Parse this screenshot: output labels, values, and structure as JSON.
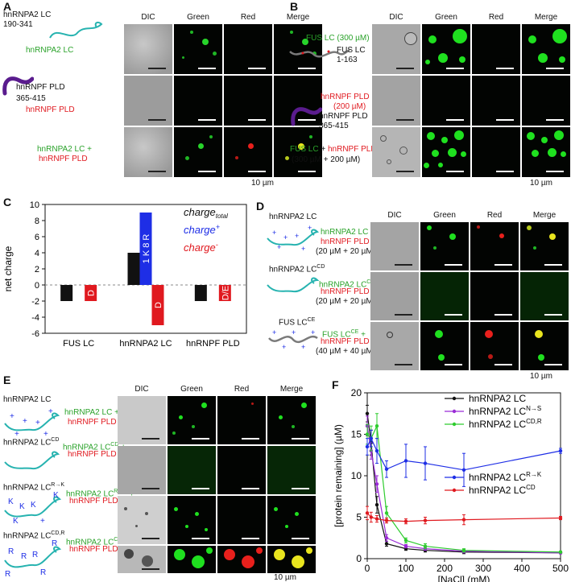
{
  "panels": {
    "A": "A",
    "B": "B",
    "C": "C",
    "D": "D",
    "E": "E",
    "F": "F"
  },
  "columns": [
    "DIC",
    "Green",
    "Red",
    "Merge"
  ],
  "scale_label": "10 µm",
  "panelA": {
    "row1": {
      "name": "hnRNPA2 LC",
      "range": "190-341",
      "tag": "hnRNPA2 LC"
    },
    "row2": {
      "name": "hnRNPF PLD",
      "range": "365-415",
      "tag": "hnRNPF PLD"
    },
    "row3": {
      "line1": "hnRNPA2 LC +",
      "line2": "hnRNPF PLD"
    }
  },
  "panelB": {
    "row1": {
      "tag": "FUS LC (300 µM)",
      "name": "FUS LC",
      "range": "1-163"
    },
    "row2": {
      "tag1": "hnRNPF PLD",
      "tag2": "(200 µM)",
      "name": "hnRNPF PLD",
      "range": "365-415"
    },
    "row3": {
      "part1": "FUS LC",
      "plus": " + ",
      "part2": "hnRNPF PLD",
      "conc": "(300 µM + 200 µM)"
    }
  },
  "panelD": {
    "row1": {
      "title": "hnRNPA2 LC",
      "l1": "hnRNPA2 LC +",
      "l2": "hnRNPF PLD",
      "l3": "(20 µM + 20 µM)"
    },
    "row2": {
      "title": "hnRNPA2 LC",
      "sup": "CD",
      "l1": "hnRNPA2 LC",
      "l1sup": "CD",
      "l1end": " +",
      "l2": "hnRNPF PLD",
      "l3": "(20 µM + 20 µM)"
    },
    "row3": {
      "title": "FUS LC",
      "sup": "CE",
      "l1": "FUS LC",
      "l1sup": "CE",
      "l1end": " +",
      "l2": "hnRNPF PLD",
      "l3": "(40 µM + 40 µM)"
    }
  },
  "panelE": {
    "row1": {
      "title": "hnRNPA2 LC",
      "l1": "hnRNPA2 LC +",
      "l2": "hnRNPF PLD"
    },
    "row2": {
      "title": "hnRNPA2 LC",
      "sup": "CD",
      "l1": "hnRNPA2 LC",
      "l1sup": "CD",
      "l1end": " +",
      "l2": "hnRNPF PLD"
    },
    "row3": {
      "title": "hnRNPA2 LC",
      "sup": "R→K",
      "l1": "hnRNPA2 LC",
      "l1sup": "R→K",
      "l1end": " +",
      "l2": "hnRNPF PLD"
    },
    "row4": {
      "title": "hnRNPA2 LC",
      "sup": "CD,R",
      "l1": "hnRNPA2 LC",
      "l1sup": "CD,R",
      "l1end": " +",
      "l2": "hnRNPF PLD"
    }
  },
  "colors": {
    "green": "#2aa22a",
    "red": "#e0191f",
    "blue": "#1e2ee6",
    "purple": "#9a2bd6",
    "teal": "#27b3b0",
    "dark_purple": "#5a1c8e"
  },
  "chart_data": [
    {
      "type": "bar",
      "ylabel": "net charge",
      "ylim": [
        -6,
        10
      ],
      "yticks": [
        -6,
        -4,
        -2,
        0,
        2,
        4,
        6,
        8,
        10
      ],
      "categories": [
        "FUS LC",
        "hnRNPA2 LC",
        "hnRNPF PLD"
      ],
      "legend": [
        {
          "text": "charge",
          "sub": "total",
          "color": "#111111"
        },
        {
          "text": "charge",
          "sup": "+",
          "color": "#1e2ee6"
        },
        {
          "text": "charge",
          "sup": "-",
          "color": "#e0191f"
        }
      ],
      "series": [
        {
          "name": "charge total",
          "color": "#111111",
          "values": [
            -2,
            4,
            -2
          ]
        },
        {
          "name": "charge +",
          "color": "#1e2ee6",
          "values": [
            0,
            9,
            0
          ],
          "labels": [
            "",
            "1 K  8 R",
            ""
          ]
        },
        {
          "name": "charge -",
          "color": "#e0191f",
          "values": [
            -2,
            -5,
            -2
          ],
          "labels": [
            "D",
            "D",
            "D/E"
          ]
        }
      ]
    },
    {
      "type": "line",
      "xlabel": "[NaCl] (mM)",
      "ylabel": "[protein remaining] (µM)",
      "xlim": [
        0,
        500
      ],
      "ylim": [
        0,
        20
      ],
      "xticks": [
        0,
        100,
        200,
        300,
        400,
        500
      ],
      "yticks": [
        0,
        5,
        10,
        15,
        20
      ],
      "x": [
        0,
        10,
        25,
        50,
        100,
        150,
        250,
        500
      ],
      "series": [
        {
          "name": "hnRNPA2 LC",
          "sup": "",
          "color": "#111111",
          "values": [
            17.5,
            14.0,
            6.5,
            1.8,
            1.2,
            1.0,
            0.8,
            0.7
          ],
          "err": [
            1.0,
            1.5,
            1.0,
            0.3,
            0.2,
            0.2,
            0.2,
            0.1
          ]
        },
        {
          "name": "hnRNPA2 LC",
          "sup": "N→S",
          "color": "#9a2bd6",
          "values": [
            16.0,
            13.0,
            9.0,
            2.5,
            1.5,
            1.2,
            0.9,
            0.7
          ],
          "err": [
            1.2,
            1.0,
            1.0,
            0.4,
            0.2,
            0.2,
            0.2,
            0.1
          ]
        },
        {
          "name": "hnRNPA2 LC",
          "sup": "CD,R",
          "color": "#2ecc2e",
          "values": [
            15.0,
            14.5,
            16.0,
            5.5,
            2.2,
            1.5,
            1.0,
            0.8
          ],
          "err": [
            1.2,
            1.5,
            1.5,
            0.8,
            0.3,
            0.3,
            0.2,
            0.1
          ]
        },
        {
          "name": "hnRNPA2 LC",
          "sup": "R→K",
          "color": "#1e2ee6",
          "values": [
            13.5,
            14.5,
            13.0,
            10.8,
            11.8,
            11.5,
            10.7,
            13.0
          ],
          "err": [
            1.0,
            1.0,
            1.5,
            1.0,
            2.0,
            2.0,
            2.0,
            0.3
          ]
        },
        {
          "name": "hnRNPA2 LC",
          "sup": "CD",
          "color": "#e0191f",
          "values": [
            5.5,
            5.0,
            4.8,
            4.6,
            4.5,
            4.6,
            4.7,
            4.9
          ],
          "err": [
            0.8,
            0.6,
            0.4,
            0.3,
            0.3,
            0.4,
            0.6,
            0.2
          ]
        }
      ]
    }
  ]
}
